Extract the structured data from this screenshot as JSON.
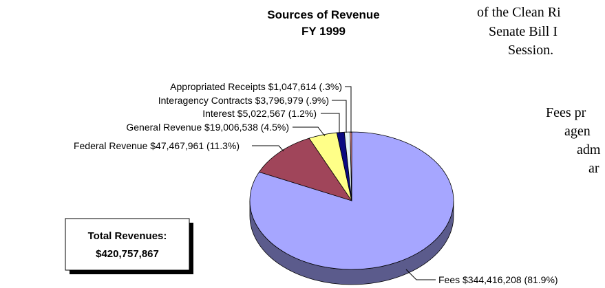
{
  "chart_data": {
    "type": "pie",
    "title": "Sources of Revenue",
    "subtitle": "FY 1999",
    "categories": [
      "Fees",
      "Federal Revenue",
      "General Revenue",
      "Interest",
      "Interagency Contracts",
      "Appropriated Receipts"
    ],
    "values": [
      344416208,
      47467961,
      19006538,
      5022567,
      3796979,
      1047614
    ],
    "value_labels": [
      "$344,416,208 (81.9%)",
      "$47,467,961 (11.3%)",
      "$19,006,538 (4.5%)",
      "$5,022,567 (1.2%)",
      "$3,796,979 (.9%)",
      "$1,047,614 (.3%)"
    ],
    "colors": [
      "#a6a6ff",
      "#a0455a",
      "#ffff88",
      "#0a0a80",
      "#e6f5f5",
      "#ff9a9a"
    ],
    "total_label": "Total Revenues:",
    "total_value": "$420,757,867"
  },
  "document_text": [
    "of the Clean Ri",
    "Senate Bill I",
    "Session.",
    "Fees pr",
    "agen",
    "adm",
    "ar"
  ]
}
